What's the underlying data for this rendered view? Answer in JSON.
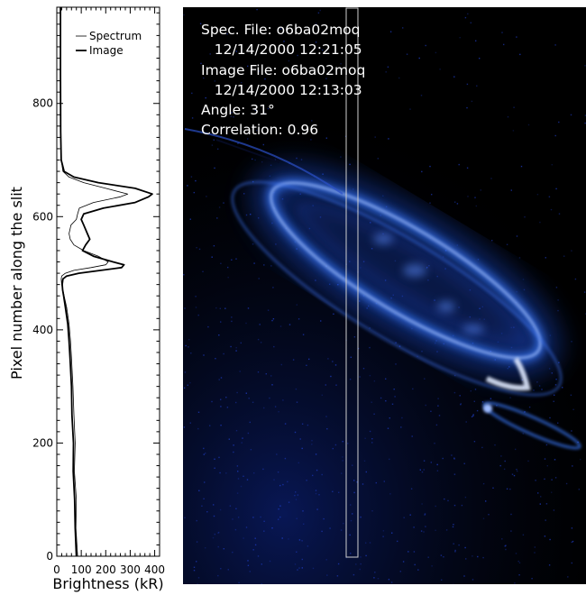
{
  "chart_data": {
    "type": "line",
    "title": "",
    "xlabel": "Brightness (kR)",
    "ylabel": "Pixel number along the slit",
    "xlim": [
      0,
      420
    ],
    "ylim": [
      0,
      970
    ],
    "xticks": [
      "0",
      "100",
      "200",
      "300",
      "400"
    ],
    "xtick_values": [
      0,
      100,
      200,
      300,
      400
    ],
    "yticks": [
      "0",
      "200",
      "400",
      "600",
      "800"
    ],
    "ytick_values": [
      0,
      200,
      400,
      600,
      800
    ],
    "legend": {
      "position": "top-right"
    },
    "grid": false,
    "series": [
      {
        "name": "Spectrum",
        "style": "thin",
        "x": [
          85,
          78,
          80,
          72,
          75,
          70,
          66,
          60,
          56,
          50,
          40,
          30,
          25,
          20,
          18,
          20,
          35,
          70,
          140,
          200,
          210,
          170,
          110,
          70,
          55,
          50,
          58,
          80,
          85,
          92,
          150,
          260,
          290,
          200,
          110,
          50,
          25,
          18,
          16,
          15,
          15
        ],
        "y": [
          0,
          50,
          100,
          150,
          200,
          250,
          300,
          350,
          380,
          410,
          440,
          460,
          470,
          480,
          490,
          495,
          500,
          505,
          510,
          515,
          520,
          530,
          540,
          550,
          560,
          570,
          585,
          595,
          605,
          615,
          625,
          635,
          640,
          650,
          660,
          670,
          680,
          700,
          750,
          850,
          970
        ]
      },
      {
        "name": "Image",
        "style": "thick",
        "x": [
          80,
          75,
          73,
          67,
          68,
          62,
          60,
          54,
          50,
          45,
          35,
          28,
          24,
          22,
          25,
          40,
          90,
          180,
          265,
          275,
          230,
          150,
          105,
          118,
          135,
          125,
          110,
          100,
          110,
          190,
          320,
          375,
          390,
          320,
          170,
          70,
          30,
          18,
          16,
          15,
          15
        ],
        "y": [
          0,
          50,
          100,
          150,
          200,
          250,
          300,
          350,
          380,
          410,
          440,
          460,
          470,
          480,
          490,
          495,
          500,
          505,
          510,
          515,
          520,
          530,
          540,
          550,
          560,
          570,
          585,
          595,
          605,
          615,
          625,
          635,
          640,
          650,
          660,
          670,
          680,
          700,
          750,
          850,
          970
        ]
      }
    ]
  },
  "image_panel": {
    "lines": [
      "Spec. File: o6ba02moq",
      "   12/14/2000 12:21:05",
      "Image File: o6ba02moq",
      "   12/14/2000 12:13:03",
      "Angle: 31°",
      "Correlation: 0.96"
    ],
    "background_color": "#000000",
    "aurora_color": "#3a7bff",
    "aurora_highlight": "#dfe9ff",
    "noise_color": "#1f3ec8",
    "slit_color": "#cfcfcf"
  }
}
